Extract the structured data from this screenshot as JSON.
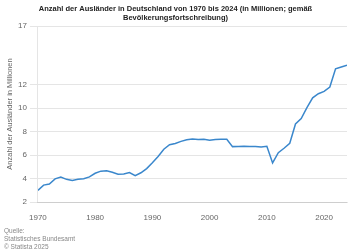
{
  "chart_data": {
    "type": "line",
    "title": "Anzahl der Ausländer in Deutschland von 1970 bis 2024 (in Millionen; gemäß\nBevölkerungsfortschreibung)",
    "y_label": "Anzahl der Ausländer in Millionen",
    "annotations": [
      "Quelle:\nStatistisches Bundesamt\n© Statista 2025"
    ],
    "x": [
      1970,
      1971,
      1972,
      1973,
      1974,
      1975,
      1976,
      1977,
      1978,
      1979,
      1980,
      1981,
      1982,
      1983,
      1984,
      1985,
      1986,
      1987,
      1988,
      1989,
      1990,
      1991,
      1992,
      1993,
      1994,
      1995,
      1996,
      1997,
      1998,
      1999,
      2000,
      2001,
      2002,
      2003,
      2004,
      2005,
      2006,
      2007,
      2008,
      2009,
      2010,
      2011,
      2012,
      2013,
      2014,
      2015,
      2016,
      2017,
      2018,
      2019,
      2020,
      2021,
      2022,
      2023,
      2024
    ],
    "values": [
      2.98,
      3.44,
      3.53,
      3.97,
      4.13,
      3.93,
      3.84,
      3.93,
      3.98,
      4.14,
      4.45,
      4.63,
      4.67,
      4.53,
      4.36,
      4.38,
      4.51,
      4.24,
      4.49,
      4.85,
      5.34,
      5.88,
      6.5,
      6.88,
      6.99,
      7.17,
      7.31,
      7.37,
      7.32,
      7.34,
      7.27,
      7.32,
      7.34,
      7.34,
      6.72,
      6.74,
      6.75,
      6.74,
      6.73,
      6.69,
      6.75,
      5.33,
      6.2,
      6.58,
      7.01,
      8.65,
      9.11,
      10.04,
      10.88,
      11.23,
      11.43,
      11.8,
      13.35,
      13.51,
      13.66
    ],
    "color": "#3a87cc",
    "xlim": [
      1970,
      2024
    ],
    "xticks": [
      1970,
      1980,
      1990,
      2000,
      2010,
      2020
    ],
    "ylim": [
      2,
      17
    ],
    "yticks": [
      2,
      4,
      6,
      8,
      10,
      12,
      17
    ],
    "grid": "y"
  }
}
